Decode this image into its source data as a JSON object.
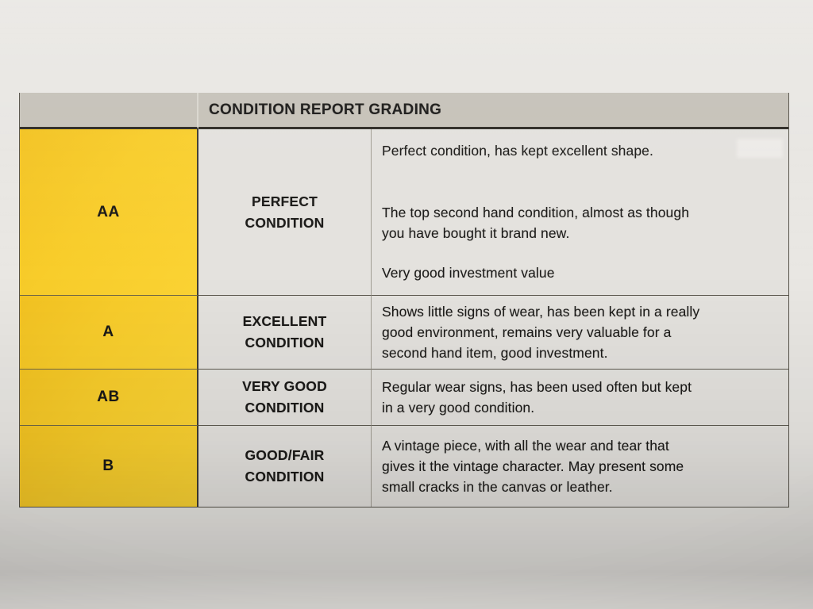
{
  "colors": {
    "accent_yellow": "#f8cd2b",
    "header_gray": "#c6c2b9",
    "paper": "#e9e7e3",
    "ink": "#1b1a18"
  },
  "table": {
    "title": "CONDITION REPORT GRADING",
    "rows": [
      {
        "grade": "AA",
        "condition": "PERFECT CONDITION",
        "condition_lines": [
          "PERFECT",
          "CONDITION"
        ],
        "description": [
          [
            "Perfect condition, has kept excellent shape."
          ],
          [
            "The top second hand condition, almost as though",
            "you have bought it brand new."
          ],
          [
            "Very good investment value"
          ]
        ]
      },
      {
        "grade": "A",
        "condition": "EXCELLENT CONDITION",
        "condition_lines": [
          "EXCELLENT",
          "CONDITION"
        ],
        "description": [
          [
            "Shows little signs of wear, has been kept in a really",
            "good environment, remains very valuable for a",
            "second hand item, good investment."
          ]
        ]
      },
      {
        "grade": "AB",
        "condition": "VERY GOOD CONDITION",
        "condition_lines": [
          "VERY GOOD",
          "CONDITION"
        ],
        "description": [
          [
            "Regular wear signs, has been used often but kept",
            "in a very good condition."
          ]
        ]
      },
      {
        "grade": "B",
        "condition": "GOOD/FAIR CONDITION",
        "condition_lines": [
          "GOOD/FAIR",
          "CONDITION"
        ],
        "description": [
          [
            "A vintage piece, with all the wear and tear that",
            "gives it the vintage character. May present some",
            "small cracks in the canvas or leather."
          ]
        ]
      }
    ]
  }
}
